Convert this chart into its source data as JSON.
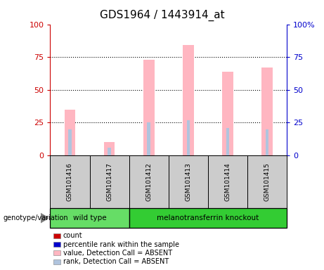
{
  "title": "GDS1964 / 1443914_at",
  "samples": [
    "GSM101416",
    "GSM101417",
    "GSM101412",
    "GSM101413",
    "GSM101414",
    "GSM101415"
  ],
  "pink_bars": [
    35,
    10,
    73,
    84,
    64,
    67
  ],
  "blue_bars": [
    20,
    6,
    25,
    27,
    21,
    20
  ],
  "ylim": [
    0,
    100
  ],
  "yticks": [
    0,
    25,
    50,
    75,
    100
  ],
  "left_axis_color": "#CC0000",
  "right_axis_color": "#0000CC",
  "legend_items": [
    {
      "label": "count",
      "color": "#CC0000"
    },
    {
      "label": "percentile rank within the sample",
      "color": "#0000CC"
    },
    {
      "label": "value, Detection Call = ABSENT",
      "color": "#FFB6C1"
    },
    {
      "label": "rank, Detection Call = ABSENT",
      "color": "#B0C4DE"
    }
  ],
  "genotype_label": "genotype/variation",
  "group_spans": [
    {
      "start": 0,
      "end": 2,
      "name": "wild type",
      "color": "#66DD66"
    },
    {
      "start": 2,
      "end": 6,
      "name": "melanotransferrin knockout",
      "color": "#33CC33"
    }
  ]
}
